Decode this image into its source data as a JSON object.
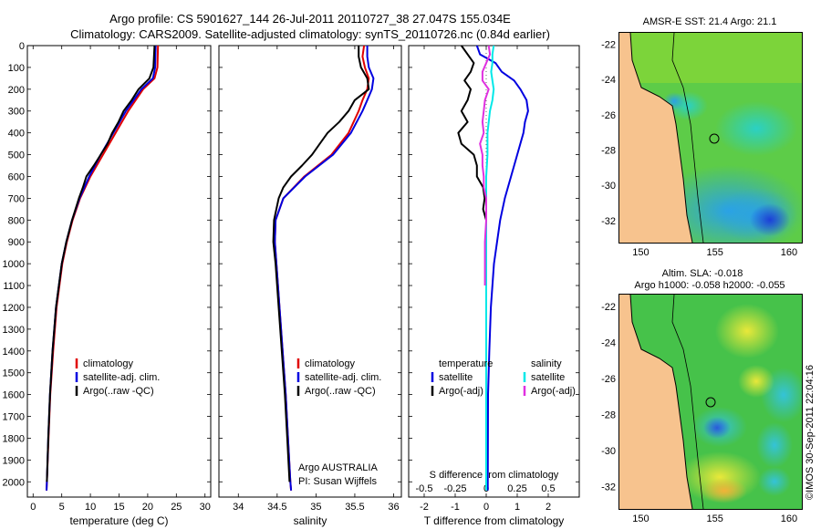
{
  "title": {
    "line1": "Argo profile: CS 5901627_144 26-Jul-2011 20110727_38 27.047S 155.034E",
    "line2": "Climatology: CARS2009. Satellite-adjusted climatology: synTS_20110726.nc (0.84d earlier)"
  },
  "colors": {
    "climatology": "#e00000",
    "satellite": "#0000e0",
    "argo": "#000000",
    "salinity_satellite": "#00e8e8",
    "salinity_argo": "#e030e0",
    "land": "#f7c38e"
  },
  "chart_data": [
    {
      "type": "line",
      "name": "temperature-panel",
      "xlabel": "temperature (deg C)",
      "ylabel": "",
      "xlim": [
        -1,
        31
      ],
      "ylim": [
        2070,
        0
      ],
      "xticks": [
        0,
        5,
        10,
        15,
        20,
        25,
        30
      ],
      "yticks": [
        0,
        100,
        200,
        300,
        400,
        500,
        600,
        700,
        800,
        900,
        1000,
        1100,
        1200,
        1300,
        1400,
        1500,
        1600,
        1700,
        1800,
        1900,
        2000
      ],
      "legend": [
        "climatology",
        "satellite-adj. clim.",
        "Argo(..raw -QC)"
      ],
      "legend_position": "lower-center",
      "series": [
        {
          "name": "climatology",
          "color_key": "climatology",
          "depth": [
            0,
            100,
            150,
            200,
            300,
            400,
            500,
            600,
            700,
            800,
            900,
            1000,
            1200,
            1400,
            1600,
            1800,
            2000,
            2040
          ],
          "values": [
            21.8,
            21.7,
            21.2,
            19.2,
            16.6,
            14.4,
            12.2,
            10.0,
            8.2,
            6.9,
            5.9,
            5.1,
            4.1,
            3.5,
            3.0,
            2.7,
            2.4,
            2.35
          ]
        },
        {
          "name": "satellite-adj. clim.",
          "color_key": "satellite",
          "depth": [
            0,
            100,
            150,
            200,
            300,
            400,
            500,
            600,
            700,
            800,
            900,
            1000,
            1200,
            1400,
            1600,
            1800,
            2000,
            2040
          ],
          "values": [
            21.4,
            21.3,
            20.9,
            18.9,
            16.2,
            14.0,
            11.8,
            9.8,
            8.1,
            6.8,
            5.8,
            5.0,
            4.0,
            3.4,
            2.95,
            2.65,
            2.4,
            2.35
          ]
        },
        {
          "name": "Argo(..raw -QC)",
          "color_key": "argo",
          "depth": [
            0,
            50,
            100,
            150,
            200,
            250,
            300,
            350,
            400,
            450,
            500,
            550,
            600,
            650,
            700,
            800,
            900,
            1000,
            1200,
            1400,
            1600,
            1800,
            2000
          ],
          "values": [
            21.2,
            21.1,
            21.0,
            20.3,
            18.4,
            17.2,
            15.8,
            14.9,
            13.8,
            13.0,
            11.8,
            10.6,
            9.3,
            8.7,
            8.0,
            6.8,
            5.8,
            5.0,
            4.0,
            3.4,
            2.95,
            2.65,
            2.4
          ]
        }
      ]
    },
    {
      "type": "line",
      "name": "salinity-panel",
      "xlabel": "salinity",
      "xlim": [
        33.75,
        36.1
      ],
      "ylim": [
        2070,
        0
      ],
      "xticks": [
        34,
        34.5,
        35,
        35.5,
        36
      ],
      "legend": [
        "climatology",
        "satellite-adj. clim.",
        "Argo(..raw -QC)"
      ],
      "legend_position": "lower-right",
      "annotation": [
        "Argo AUSTRALIA",
        "PI: Susan Wijffels"
      ],
      "series": [
        {
          "name": "climatology",
          "color_key": "climatology",
          "depth": [
            0,
            50,
            100,
            150,
            200,
            250,
            300,
            400,
            500,
            600,
            700,
            800,
            900,
            1000,
            1200,
            1400,
            1600,
            1800,
            2000,
            2040
          ],
          "values": [
            35.62,
            35.6,
            35.63,
            35.68,
            35.66,
            35.6,
            35.55,
            35.42,
            35.2,
            34.85,
            34.58,
            34.48,
            34.47,
            34.49,
            34.53,
            34.57,
            34.61,
            34.64,
            34.67,
            34.68
          ]
        },
        {
          "name": "satellite-adj. clim.",
          "color_key": "satellite",
          "depth": [
            0,
            50,
            100,
            150,
            200,
            250,
            300,
            400,
            500,
            600,
            700,
            800,
            900,
            1000,
            1200,
            1400,
            1600,
            1800,
            2000,
            2040
          ],
          "values": [
            35.66,
            35.66,
            35.68,
            35.74,
            35.72,
            35.66,
            35.6,
            35.45,
            35.22,
            34.86,
            34.58,
            34.48,
            34.47,
            34.49,
            34.53,
            34.57,
            34.61,
            34.64,
            34.67,
            34.68
          ]
        },
        {
          "name": "Argo(..raw -QC)",
          "color_key": "argo",
          "depth": [
            0,
            50,
            100,
            150,
            200,
            250,
            300,
            350,
            400,
            450,
            500,
            550,
            600,
            650,
            700,
            800,
            900,
            1000,
            1200,
            1400,
            1600,
            1800,
            2000
          ],
          "values": [
            35.55,
            35.55,
            35.58,
            35.66,
            35.68,
            35.5,
            35.42,
            35.3,
            35.15,
            35.05,
            34.95,
            34.82,
            34.68,
            34.58,
            34.52,
            34.46,
            34.45,
            34.48,
            34.52,
            34.56,
            34.6,
            34.63,
            34.66
          ]
        }
      ]
    },
    {
      "type": "line",
      "name": "difference-panel",
      "xlabel": "T difference from climatology",
      "xlabel_top": "S difference from climatology",
      "xlim": [
        -2.5,
        3
      ],
      "x2lim": [
        -0.625,
        0.75
      ],
      "ylim": [
        2070,
        0
      ],
      "xticks": [
        -2,
        -1,
        0,
        1,
        2
      ],
      "x2ticks": [
        -0.5,
        -0.25,
        0,
        0.25,
        0.5
      ],
      "x2ticklabels": [
        "-0.5",
        "-0.25",
        "0",
        "0.25",
        "0.5"
      ],
      "legend_temperature_title": "temperature",
      "legend_salinity_title": "salinity",
      "legend_temperature": [
        "satellite",
        "Argo(-adj)"
      ],
      "legend_salinity": [
        "satellite",
        "Argo(-adj)"
      ],
      "series": [
        {
          "name": "T satellite",
          "color_key": "satellite",
          "axis": "T",
          "depth": [
            0,
            40,
            80,
            120,
            160,
            200,
            250,
            300,
            350,
            400,
            450,
            500,
            600,
            700,
            800,
            900,
            1000,
            1200,
            1400,
            1600,
            2040
          ],
          "values": [
            -0.3,
            -0.2,
            0.3,
            0.5,
            0.9,
            1.1,
            1.3,
            1.35,
            1.25,
            1.2,
            1.1,
            1.0,
            0.8,
            0.6,
            0.45,
            0.35,
            0.25,
            0.15,
            0.1,
            0.06,
            0.05
          ]
        },
        {
          "name": "T Argo",
          "color_key": "argo",
          "axis": "T",
          "depth": [
            0,
            40,
            80,
            120,
            160,
            200,
            250,
            300,
            350,
            400,
            450,
            500,
            550,
            600,
            650,
            700,
            750,
            800
          ],
          "values": [
            -0.8,
            -0.6,
            -0.4,
            -0.5,
            -0.7,
            -0.5,
            -0.6,
            -0.8,
            -0.6,
            -0.9,
            -0.8,
            -0.4,
            -0.3,
            -0.3,
            -0.1,
            -0.05,
            -0.1,
            0.0
          ]
        },
        {
          "name": "S satellite",
          "color_key": "salinity_satellite",
          "axis": "S",
          "depth": [
            0,
            40,
            80,
            120,
            160,
            200,
            250,
            300,
            400,
            500,
            600,
            700,
            800,
            1000,
            1200,
            2040
          ],
          "values": [
            0.06,
            0.05,
            0.05,
            0.04,
            0.05,
            0.06,
            0.05,
            0.03,
            0.01,
            0.01,
            0.0,
            0.0,
            0.0,
            0.0,
            0.0,
            0.0
          ]
        },
        {
          "name": "S Argo",
          "color_key": "salinity_argo",
          "axis": "S",
          "depth": [
            0,
            40,
            80,
            120,
            160,
            200,
            250,
            300,
            350,
            400,
            450,
            500,
            550,
            600,
            650,
            700,
            750,
            800,
            900,
            1000,
            1100
          ],
          "values": [
            0.02,
            0.03,
            0.0,
            -0.03,
            -0.03,
            0.02,
            -0.01,
            -0.02,
            -0.03,
            -0.02,
            -0.05,
            -0.03,
            -0.03,
            -0.02,
            -0.02,
            0.0,
            0.0,
            0.0,
            -0.01,
            -0.01,
            -0.01
          ]
        }
      ]
    },
    {
      "type": "heatmap",
      "name": "sst-map",
      "title": "AMSR-E SST: 21.4  Argo: 21.1",
      "xticks": [
        150,
        155,
        160
      ],
      "yticks": [
        -22,
        -24,
        -26,
        -28,
        -30,
        -32
      ],
      "xlim": [
        148.5,
        160.8
      ],
      "ylim": [
        -33.2,
        -21.3
      ]
    },
    {
      "type": "heatmap",
      "name": "sla-map",
      "title": "Altim. SLA: -0.018",
      "subtitle": "Argo h1000: -0.058 h2000: -0.055",
      "xticks": [
        150,
        155,
        160
      ],
      "yticks": [
        -22,
        -24,
        -26,
        -28,
        -30,
        -32
      ],
      "xlim": [
        148.5,
        160.8
      ],
      "ylim": [
        -33.2,
        -21.3
      ]
    }
  ],
  "footer": {
    "credit": "©IMOS 30-Sep-2011 22:04:16"
  }
}
